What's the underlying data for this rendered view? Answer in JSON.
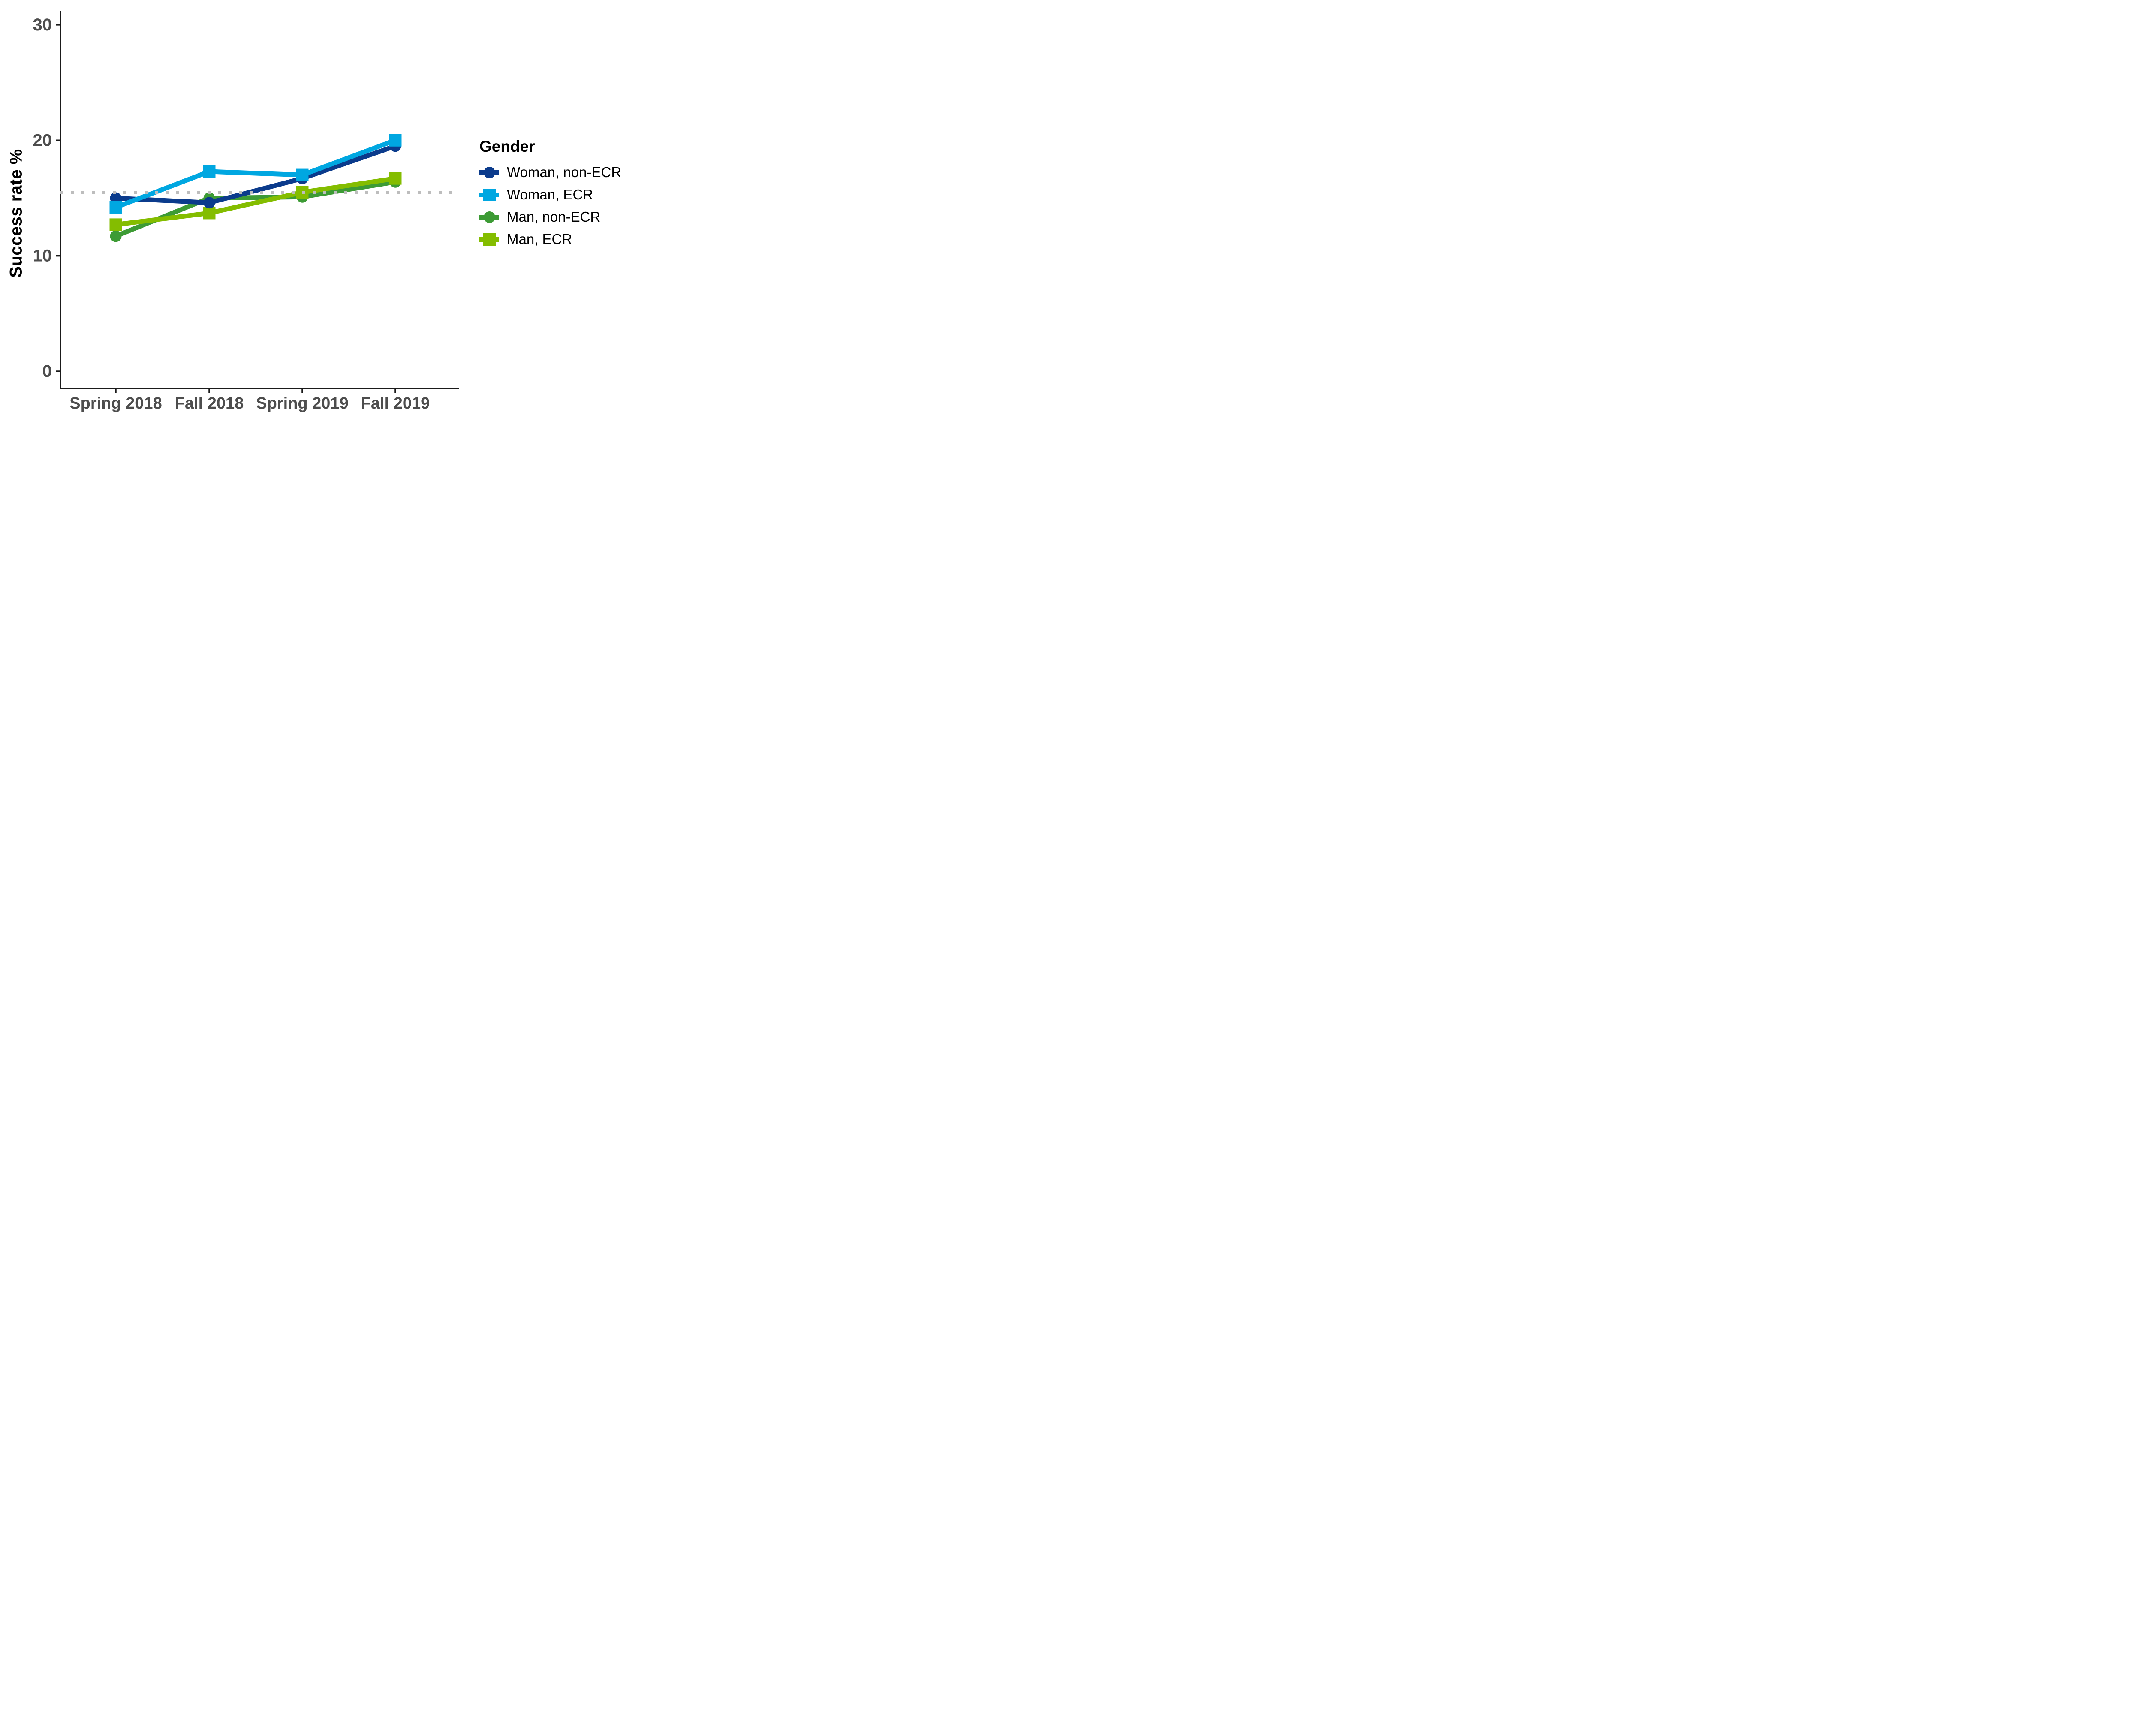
{
  "chart_data": {
    "type": "line",
    "title": "",
    "ylabel": "Success rate %",
    "xlabel": "",
    "categories": [
      "Spring 2018",
      "Fall 2018",
      "Spring 2019",
      "Fall 2019"
    ],
    "series": [
      {
        "name": "Woman, non-ECR",
        "marker": "circle",
        "color": "#0b3b8c",
        "values": [
          15.0,
          14.6,
          16.7,
          19.5
        ]
      },
      {
        "name": "Woman, ECR",
        "marker": "square",
        "color": "#00a7e1",
        "values": [
          14.2,
          17.3,
          17.0,
          20.0
        ]
      },
      {
        "name": "Man, non-ECR",
        "marker": "circle",
        "color": "#3d9b35",
        "values": [
          11.7,
          15.0,
          15.1,
          16.4
        ]
      },
      {
        "name": "Man, ECR",
        "marker": "square",
        "color": "#84bd00",
        "values": [
          12.7,
          13.7,
          15.5,
          16.7
        ]
      }
    ],
    "reference_line": {
      "value": 15.5,
      "style": "dotted",
      "color": "#bdbdbd"
    },
    "yticks": [
      0,
      10,
      20,
      30
    ],
    "ylim": [
      0,
      31
    ],
    "grid": "off",
    "legend_title": "Gender",
    "legend_position": "right",
    "axis_text_color": "#4d4d4d",
    "axis_line_color": "#1a1a1a"
  }
}
